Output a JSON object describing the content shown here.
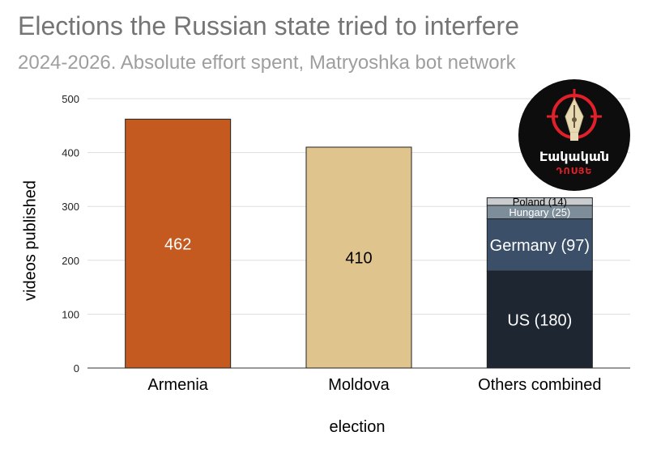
{
  "title": "Elections the Russian state tried to interfere",
  "subtitle": "2024-2026. Absolute effort spent, Matryoshka bot network",
  "logo": {
    "text": "Էակական",
    "subtext": "ԴՈՍՅԵ",
    "icon": "pen-nib-crosshair-icon"
  },
  "chart_data": {
    "type": "bar",
    "stacked": true,
    "title": "Elections the Russian state tried to interfere",
    "subtitle": "2024-2026. Absolute effort spent, Matryoshka bot network",
    "xlabel": "election",
    "ylabel": "videos published",
    "ylim": [
      0,
      500
    ],
    "yticks": [
      0,
      100,
      200,
      300,
      400,
      500
    ],
    "grid": true,
    "categories": [
      "Armenia",
      "Moldova",
      "Others combined"
    ],
    "bars": [
      {
        "category": "Armenia",
        "segments": [
          {
            "label": "462",
            "value": 462,
            "color": "#c45a1f",
            "text_color": "#ffffff"
          }
        ]
      },
      {
        "category": "Moldova",
        "segments": [
          {
            "label": "410",
            "value": 410,
            "color": "#e0c48d",
            "text_color": "#000000"
          }
        ]
      },
      {
        "category": "Others combined",
        "segments": [
          {
            "label": "US (180)",
            "value": 180,
            "color": "#1e2632",
            "text_color": "#ffffff"
          },
          {
            "label": "Germany (97)",
            "value": 97,
            "color": "#3b4f69",
            "text_color": "#ffffff"
          },
          {
            "label": "Hungary (25)",
            "value": 25,
            "color": "#7d8d9a",
            "text_color": "#ffffff"
          },
          {
            "label": "Poland (14)",
            "value": 14,
            "color": "#c8cccf",
            "text_color": "#000000"
          }
        ]
      }
    ]
  }
}
